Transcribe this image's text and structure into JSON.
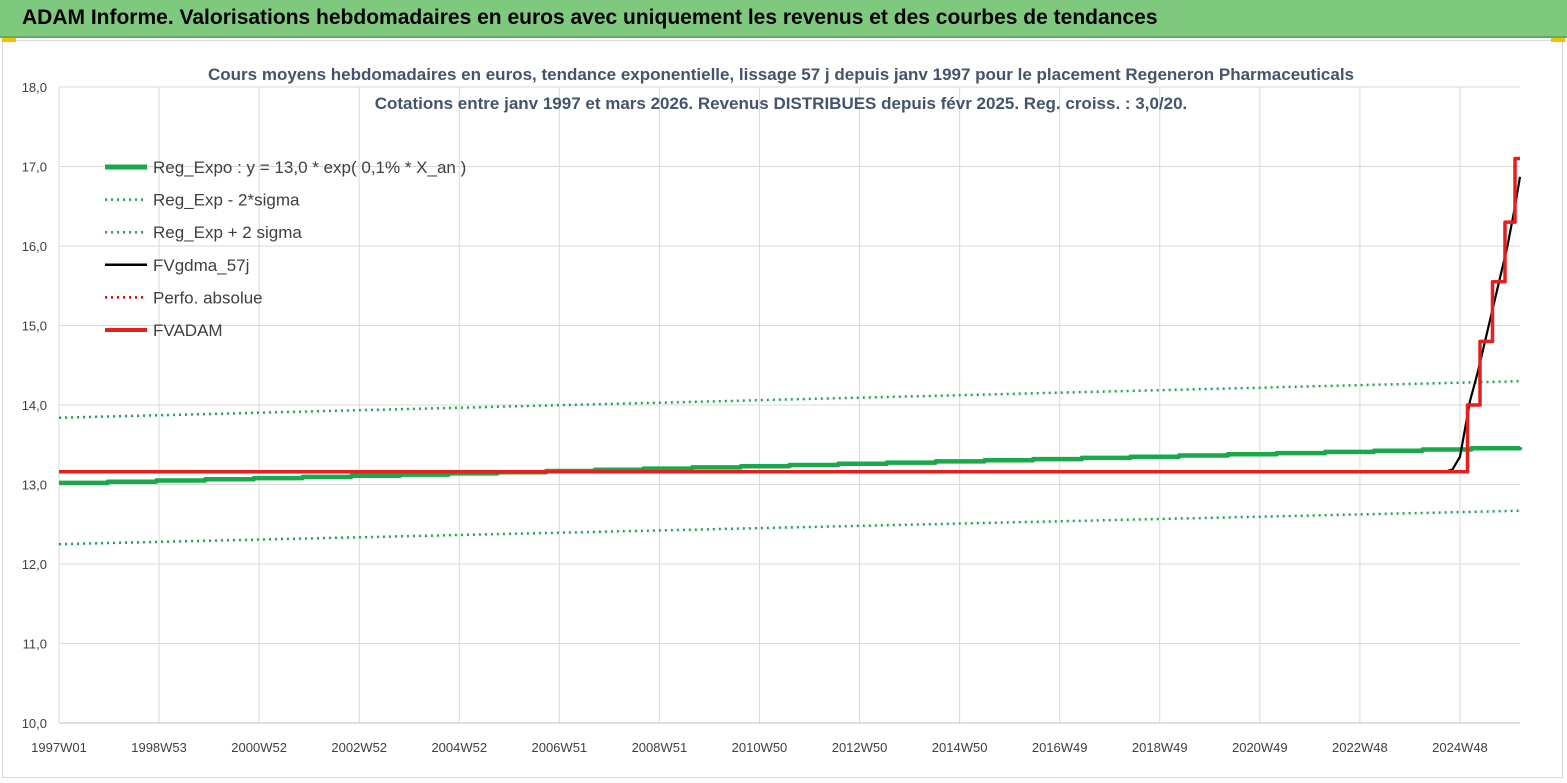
{
  "banner": {
    "title": "ADAM Informe. Valorisations hebdomadaires en euros avec uniquement les revenus et des courbes de tendances"
  },
  "colors": {
    "banner_bg": "#7fc97f",
    "reg_expo": "#19a94a",
    "fv_gdma": "#000000",
    "perfo": "#e00000",
    "fvadam": "#e61e1e",
    "grid": "#d9d9d9"
  },
  "chart_data": {
    "type": "line",
    "title_lines": [
      "Cours moyens hebdomadaires en euros, tendance exponentielle, lissage 57 j depuis janv 1997  pour le placement Regeneron Pharmaceuticals",
      "Cotations entre janv 1997 et mars 2026. Revenus DISTRIBUES depuis févr 2025. Reg. croiss. : 3,0/20."
    ],
    "ylim": [
      10.0,
      18.0
    ],
    "y_ticks": [
      "10,0",
      "11,0",
      "12,0",
      "13,0",
      "14,0",
      "15,0",
      "16,0",
      "17,0",
      "18,0"
    ],
    "x_range": [
      1997.0,
      2026.2
    ],
    "x_ticks": [
      {
        "label": "1997W01",
        "x": 1997.0
      },
      {
        "label": "1998W53",
        "x": 1999.0
      },
      {
        "label": "2000W52",
        "x": 2001.0
      },
      {
        "label": "2002W52",
        "x": 2003.0
      },
      {
        "label": "2004W52",
        "x": 2005.0
      },
      {
        "label": "2006W51",
        "x": 2007.0
      },
      {
        "label": "2008W51",
        "x": 2009.0
      },
      {
        "label": "2010W50",
        "x": 2011.0
      },
      {
        "label": "2012W50",
        "x": 2013.0
      },
      {
        "label": "2014W50",
        "x": 2015.0
      },
      {
        "label": "2016W49",
        "x": 2017.0
      },
      {
        "label": "2018W49",
        "x": 2019.0
      },
      {
        "label": "2020W49",
        "x": 2021.0
      },
      {
        "label": "2022W48",
        "x": 2023.0
      },
      {
        "label": "2024W48",
        "x": 2025.0
      }
    ],
    "grid": true,
    "legend_position": "top-left",
    "series": [
      {
        "name": "Reg_Expo : y = 13,0 * exp( 0,1% *  X_an )",
        "style": "thick-solid",
        "color": "#19a94a",
        "points": [
          [
            1997.0,
            13.02
          ],
          [
            2026.2,
            13.47
          ]
        ]
      },
      {
        "name": "Reg_Exp - 2*sigma",
        "style": "dotted",
        "color": "#19a94a",
        "points": [
          [
            1997.0,
            12.25
          ],
          [
            2026.2,
            12.67
          ]
        ]
      },
      {
        "name": "Reg_Exp + 2 sigma",
        "style": "dotted",
        "color": "#19a94a",
        "points": [
          [
            1997.0,
            13.84
          ],
          [
            2026.2,
            14.3
          ]
        ]
      },
      {
        "name": "FVgdma_57j",
        "style": "solid",
        "color": "#000000",
        "points": [
          [
            1997.0,
            13.16
          ],
          [
            2024.7,
            13.16
          ],
          [
            2024.85,
            13.19
          ],
          [
            2025.0,
            13.35
          ],
          [
            2025.1,
            13.7
          ],
          [
            2025.2,
            14.05
          ],
          [
            2025.35,
            14.4
          ],
          [
            2025.5,
            14.8
          ],
          [
            2025.65,
            15.2
          ],
          [
            2025.8,
            15.6
          ],
          [
            2025.95,
            16.0
          ],
          [
            2026.1,
            16.5
          ],
          [
            2026.2,
            16.87
          ]
        ]
      },
      {
        "name": "Perfo. absolue",
        "style": "dotted",
        "color": "#e00000",
        "points": []
      },
      {
        "name": "FVADAM",
        "style": "step",
        "color": "#e61e1e",
        "points": [
          [
            1997.0,
            13.16
          ],
          [
            2025.15,
            13.16
          ],
          [
            2025.15,
            14.0
          ],
          [
            2025.4,
            14.0
          ],
          [
            2025.4,
            14.8
          ],
          [
            2025.65,
            14.8
          ],
          [
            2025.65,
            15.55
          ],
          [
            2025.9,
            15.55
          ],
          [
            2025.9,
            16.3
          ],
          [
            2026.1,
            16.3
          ],
          [
            2026.1,
            17.1
          ],
          [
            2026.2,
            17.1
          ]
        ]
      }
    ]
  }
}
